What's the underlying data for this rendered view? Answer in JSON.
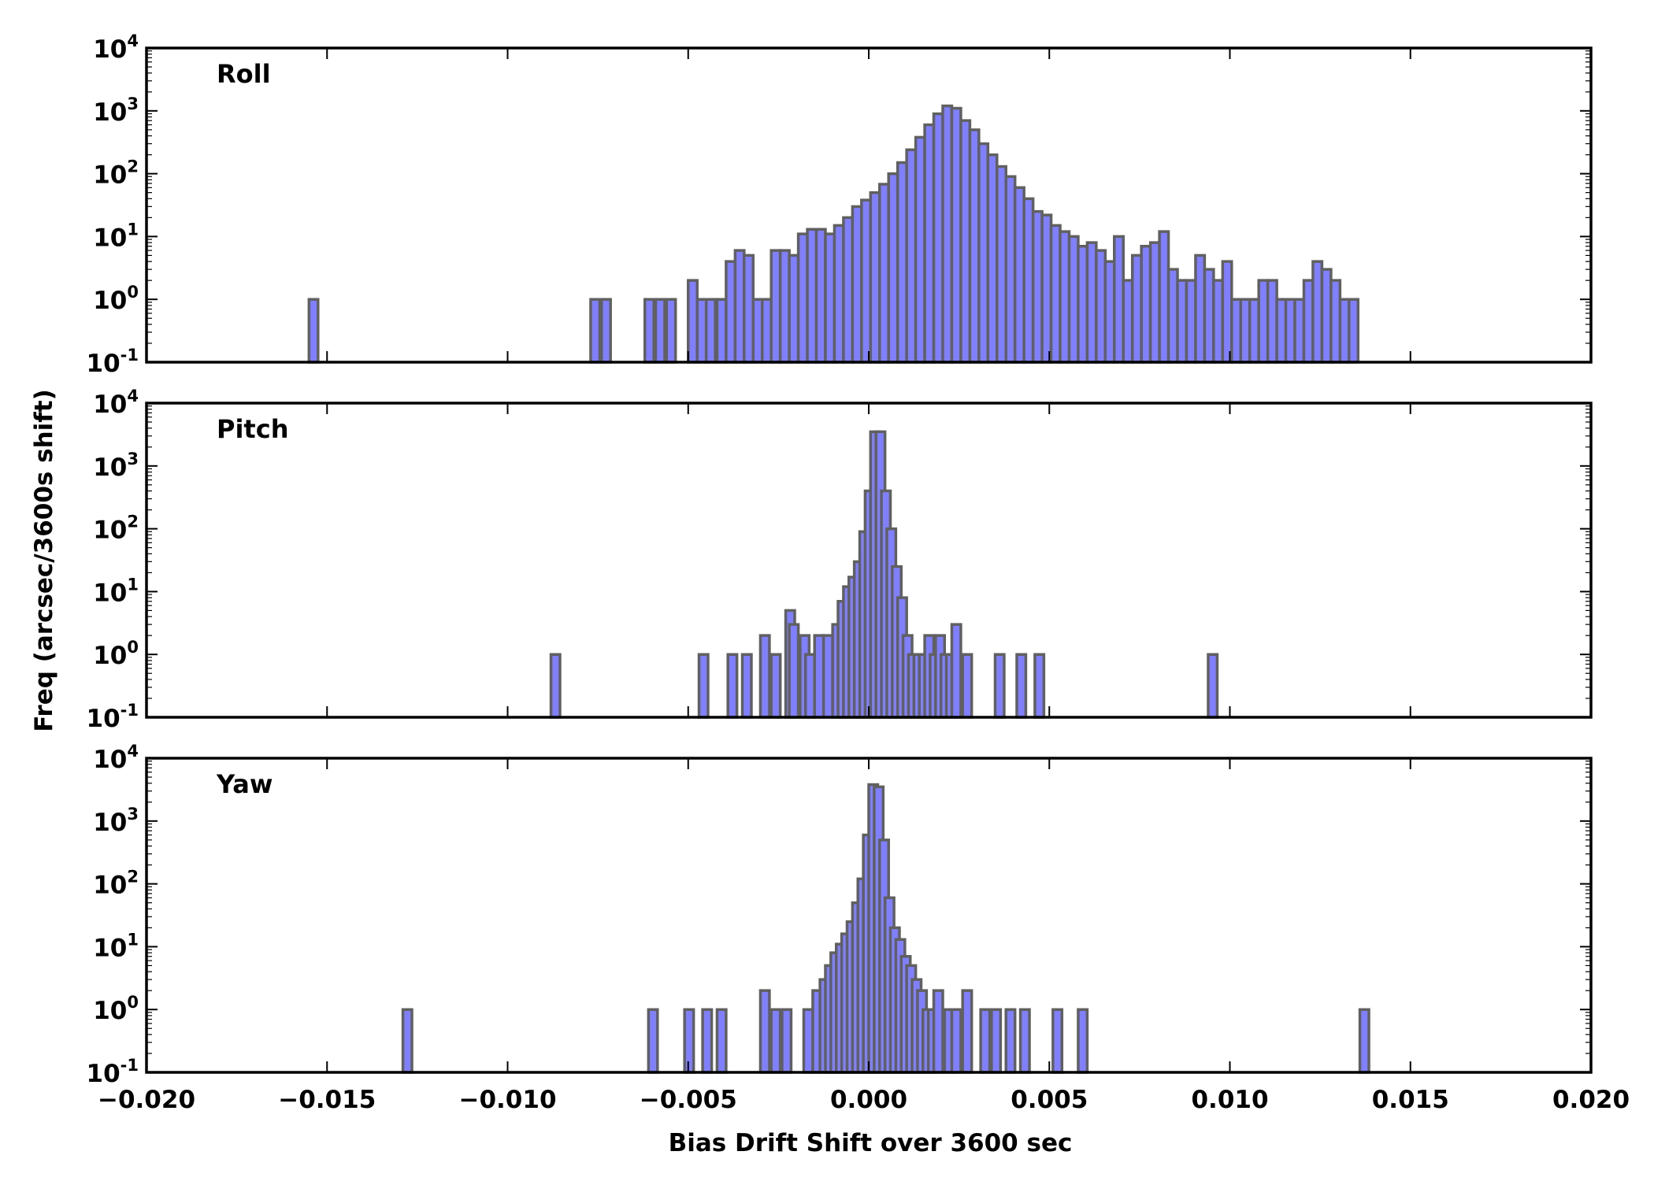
{
  "chart_data": {
    "type": "histogram",
    "xlabel": "Bias Drift Shift over 3600 sec",
    "ylabel": "Freq (arcsec/3600s shift)",
    "xlim": [
      -0.02,
      0.02
    ],
    "ylim": [
      0.1,
      10000
    ],
    "yscale": "log",
    "bin_width": 0.00025,
    "x_ticks": [
      "−0.020",
      "−0.015",
      "−0.010",
      "−0.005",
      "0.000",
      "0.005",
      "0.010",
      "0.015",
      "0.020"
    ],
    "y_ticks": [
      {
        "base": "10",
        "exp": "-1"
      },
      {
        "base": "10",
        "exp": "0"
      },
      {
        "base": "10",
        "exp": "1"
      },
      {
        "base": "10",
        "exp": "2"
      },
      {
        "base": "10",
        "exp": "3"
      },
      {
        "base": "10",
        "exp": "4"
      }
    ],
    "colors": {
      "fill": "#8080ff",
      "edge": "#606060"
    },
    "panels": [
      {
        "name": "Roll",
        "bins": [
          [
            -0.0155,
            1
          ],
          [
            -0.0077,
            1
          ],
          [
            -0.0074,
            1
          ],
          [
            -0.0062,
            1
          ],
          [
            -0.0059,
            1
          ],
          [
            -0.0056,
            1
          ],
          [
            -0.005,
            2
          ],
          [
            -0.00475,
            1
          ],
          [
            -0.0045,
            1
          ],
          [
            -0.0042,
            1
          ],
          [
            -0.00395,
            4
          ],
          [
            -0.0037,
            6
          ],
          [
            -0.00345,
            5
          ],
          [
            -0.0032,
            1
          ],
          [
            -0.00295,
            1
          ],
          [
            -0.0027,
            6
          ],
          [
            -0.00245,
            6
          ],
          [
            -0.0022,
            5
          ],
          [
            -0.00195,
            11
          ],
          [
            -0.0017,
            13
          ],
          [
            -0.00145,
            13
          ],
          [
            -0.0012,
            11
          ],
          [
            -0.00095,
            15
          ],
          [
            -0.0007,
            20
          ],
          [
            -0.00045,
            30
          ],
          [
            -0.0002,
            38
          ],
          [
            5e-05,
            50
          ],
          [
            0.0003,
            68
          ],
          [
            0.00055,
            100
          ],
          [
            0.0008,
            150
          ],
          [
            0.00105,
            240
          ],
          [
            0.0013,
            380
          ],
          [
            0.00155,
            600
          ],
          [
            0.0018,
            900
          ],
          [
            0.00205,
            1200
          ],
          [
            0.0023,
            1100
          ],
          [
            0.00255,
            700
          ],
          [
            0.0028,
            500
          ],
          [
            0.00305,
            300
          ],
          [
            0.0033,
            200
          ],
          [
            0.00355,
            130
          ],
          [
            0.0038,
            90
          ],
          [
            0.00405,
            60
          ],
          [
            0.0043,
            40
          ],
          [
            0.00455,
            25
          ],
          [
            0.0048,
            22
          ],
          [
            0.00505,
            15
          ],
          [
            0.0053,
            12
          ],
          [
            0.00555,
            10
          ],
          [
            0.0058,
            7
          ],
          [
            0.00605,
            8
          ],
          [
            0.0063,
            6
          ],
          [
            0.00655,
            4
          ],
          [
            0.0068,
            10
          ],
          [
            0.00705,
            2
          ],
          [
            0.0073,
            5
          ],
          [
            0.00755,
            7
          ],
          [
            0.0078,
            8
          ],
          [
            0.00805,
            12
          ],
          [
            0.0083,
            3
          ],
          [
            0.00855,
            2
          ],
          [
            0.0088,
            2
          ],
          [
            0.00905,
            5
          ],
          [
            0.0093,
            3
          ],
          [
            0.00955,
            2
          ],
          [
            0.0098,
            4
          ],
          [
            0.01005,
            1
          ],
          [
            0.0103,
            1
          ],
          [
            0.01055,
            1
          ],
          [
            0.0108,
            2
          ],
          [
            0.01105,
            2
          ],
          [
            0.0113,
            1
          ],
          [
            0.01155,
            1
          ],
          [
            0.0118,
            1
          ],
          [
            0.01205,
            2
          ],
          [
            0.0123,
            4
          ],
          [
            0.01255,
            3
          ],
          [
            0.0128,
            2
          ],
          [
            0.01305,
            1
          ],
          [
            0.0133,
            1
          ]
        ]
      },
      {
        "name": "Pitch",
        "bins": [
          [
            -0.0088,
            1
          ],
          [
            -0.0047,
            1
          ],
          [
            -0.0039,
            1
          ],
          [
            -0.0035,
            1
          ],
          [
            -0.003,
            2
          ],
          [
            -0.0027,
            1
          ],
          [
            -0.0023,
            5
          ],
          [
            -0.0022,
            3
          ],
          [
            -0.0019,
            2
          ],
          [
            -0.00175,
            1
          ],
          [
            -0.0015,
            2
          ],
          [
            -0.00125,
            2
          ],
          [
            -0.001,
            3
          ],
          [
            -0.00085,
            7
          ],
          [
            -0.0007,
            12
          ],
          [
            -0.00055,
            17
          ],
          [
            -0.0004,
            30
          ],
          [
            -0.00025,
            90
          ],
          [
            -0.0001,
            400
          ],
          [
            5e-05,
            3500
          ],
          [
            0.0002,
            3500
          ],
          [
            0.00035,
            400
          ],
          [
            0.0005,
            100
          ],
          [
            0.00065,
            25
          ],
          [
            0.0008,
            8
          ],
          [
            0.00095,
            2
          ],
          [
            0.0011,
            1
          ],
          [
            0.00125,
            1
          ],
          [
            0.0014,
            1
          ],
          [
            0.00155,
            2
          ],
          [
            0.0017,
            1
          ],
          [
            0.00185,
            2
          ],
          [
            0.002,
            1
          ],
          [
            0.00215,
            1
          ],
          [
            0.0023,
            3
          ],
          [
            0.0026,
            1
          ],
          [
            0.0035,
            1
          ],
          [
            0.0041,
            1
          ],
          [
            0.0046,
            1
          ],
          [
            0.0094,
            1
          ]
        ]
      },
      {
        "name": "Yaw",
        "bins": [
          [
            -0.0129,
            1
          ],
          [
            -0.0061,
            1
          ],
          [
            -0.0051,
            1
          ],
          [
            -0.0046,
            1
          ],
          [
            -0.0042,
            1
          ],
          [
            -0.003,
            2
          ],
          [
            -0.0027,
            1
          ],
          [
            -0.0024,
            1
          ],
          [
            -0.0018,
            1
          ],
          [
            -0.00155,
            2
          ],
          [
            -0.00135,
            3
          ],
          [
            -0.0012,
            5
          ],
          [
            -0.00105,
            8
          ],
          [
            -0.0009,
            11
          ],
          [
            -0.00075,
            16
          ],
          [
            -0.0006,
            25
          ],
          [
            -0.00045,
            50
          ],
          [
            -0.0003,
            120
          ],
          [
            -0.00015,
            600
          ],
          [
            0.0,
            3800
          ],
          [
            0.00015,
            3500
          ],
          [
            0.0003,
            500
          ],
          [
            0.00045,
            60
          ],
          [
            0.0006,
            20
          ],
          [
            0.00075,
            13
          ],
          [
            0.0009,
            7
          ],
          [
            0.00105,
            5
          ],
          [
            0.0012,
            3
          ],
          [
            0.00135,
            2
          ],
          [
            0.0015,
            1
          ],
          [
            0.00165,
            1
          ],
          [
            0.0018,
            2
          ],
          [
            0.0021,
            1
          ],
          [
            0.0023,
            1
          ],
          [
            0.0026,
            2
          ],
          [
            0.0031,
            1
          ],
          [
            0.0034,
            1
          ],
          [
            0.0038,
            1
          ],
          [
            0.0042,
            1
          ],
          [
            0.0051,
            1
          ],
          [
            0.0058,
            1
          ],
          [
            0.0136,
            1
          ]
        ]
      }
    ]
  }
}
